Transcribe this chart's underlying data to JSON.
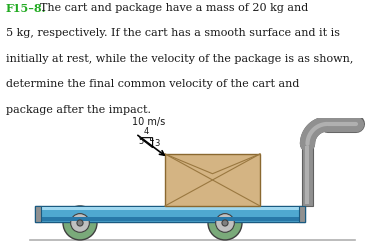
{
  "title_label": "F15–8.",
  "line1_after_title": "  The cart and package have a mass of 20 kg and",
  "line2": "5 kg, respectively. If the cart has a smooth surface and it is",
  "line3": "initially at rest, while the velocity of the package is as shown,",
  "line4": "determine the final common velocity of the cart and",
  "line5": "package after the impact.",
  "velocity_label": "10 m/s",
  "tri_labels": [
    "3",
    "4",
    "5"
  ],
  "bg_color": "#ffffff",
  "text_color": "#1a1a1a",
  "title_color": "#22aa22",
  "cart_blue_light": "#6bbde0",
  "cart_blue_mid": "#4fa8d0",
  "cart_blue_dark": "#2878a8",
  "cart_top_highlight": "#a0d8f0",
  "cart_edge_dark": "#1a5a80",
  "cart_side_gray": "#909090",
  "cart_side_light": "#b8b8b8",
  "wheel_green": "#7aaa7a",
  "wheel_gray_inner": "#c0c0c0",
  "wheel_hub": "#808080",
  "wheel_edge": "#404040",
  "handle_gray": "#909090",
  "handle_light": "#b0b0b0",
  "handle_dark": "#606060",
  "pkg_tan": "#d4b483",
  "pkg_line": "#9a7840",
  "pkg_edge": "#8a6830",
  "ground_color": "#b0b0b0",
  "arrow_color": "#000000"
}
